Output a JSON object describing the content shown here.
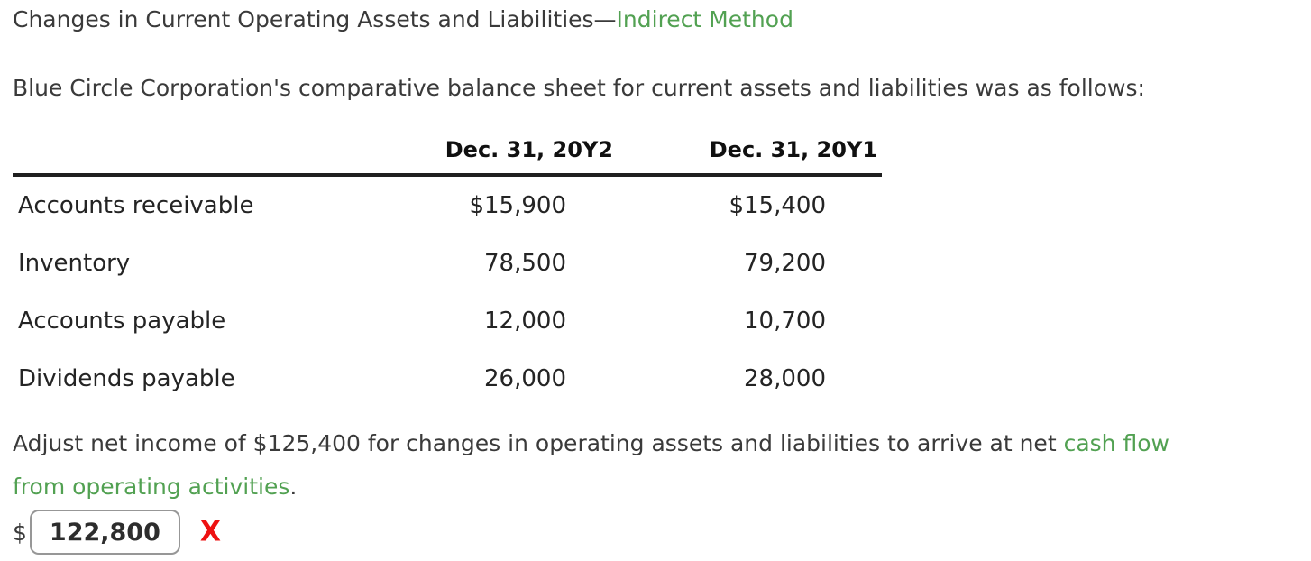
{
  "title": {
    "prefix": "Changes in Current Operating Assets and Liabilities—",
    "link": "Indirect Method"
  },
  "intro": "Blue Circle Corporation's comparative balance sheet for current assets and liabilities was as follows:",
  "table": {
    "columns": [
      "",
      "Dec. 31, 20Y2",
      "Dec. 31, 20Y1"
    ],
    "rows": [
      {
        "label": "Accounts receivable",
        "y2": "$15,900",
        "y1": "$15,400"
      },
      {
        "label": "Inventory",
        "y2": "78,500",
        "y1": "79,200"
      },
      {
        "label": "Accounts payable",
        "y2": "12,000",
        "y1": "10,700"
      },
      {
        "label": "Dividends payable",
        "y2": "26,000",
        "y1": "28,000"
      }
    ]
  },
  "instruction": {
    "line1_text": "Adjust net income of $125,400 for changes in operating assets and liabilities to arrive at net ",
    "line1_link": "cash flow",
    "line2_link": "from operating activities",
    "line2_text": "."
  },
  "answer": {
    "currency_symbol": "$",
    "input_value": "122,800",
    "incorrect_mark": "X"
  },
  "colors": {
    "link_green": "#52a152",
    "incorrect_red": "#ee1111",
    "text": "#3a3a3a"
  }
}
